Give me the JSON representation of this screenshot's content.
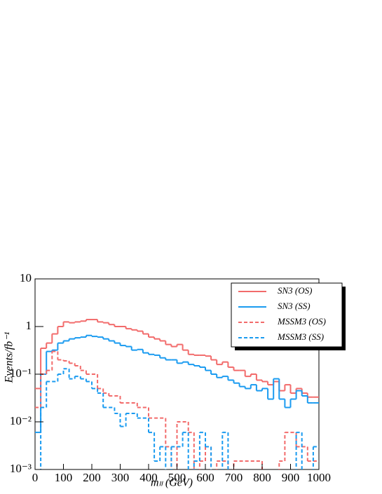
{
  "chart_data": {
    "type": "histogram",
    "x_label": "mₗₗ (GeV)",
    "y_label": "Events/fb⁻¹",
    "bins": [
      0,
      20,
      40,
      60,
      80,
      100,
      120,
      140,
      160,
      180,
      200,
      220,
      240,
      260,
      280,
      300,
      320,
      340,
      360,
      380,
      400,
      420,
      440,
      460,
      480,
      500,
      520,
      540,
      560,
      580,
      600,
      620,
      640,
      660,
      680,
      700,
      720,
      740,
      760,
      780,
      800,
      820,
      840,
      860,
      880,
      900,
      920,
      940,
      960,
      980,
      1000
    ],
    "xlim": [
      0,
      1000
    ],
    "xticks": [
      0,
      100,
      200,
      300,
      400,
      500,
      600,
      700,
      800,
      900,
      1000
    ],
    "ylim": [
      0.001,
      10
    ],
    "log_y": true,
    "yticks": [
      {
        "value": 0.001,
        "label": "10⁻³"
      },
      {
        "value": 0.01,
        "label": "10⁻²"
      },
      {
        "value": 0.1,
        "label": "10⁻¹"
      },
      1,
      10
    ],
    "legend": "upper right",
    "series": [
      {
        "name": "SN3 (OS)",
        "color": "#f26b6b",
        "dashed": false,
        "values": [
          0.05,
          0.35,
          0.45,
          0.7,
          1.0,
          1.25,
          1.2,
          1.25,
          1.3,
          1.4,
          1.4,
          1.25,
          1.2,
          1.1,
          1.0,
          1.0,
          0.9,
          0.85,
          0.8,
          0.7,
          0.6,
          0.55,
          0.5,
          0.42,
          0.38,
          0.42,
          0.32,
          0.26,
          0.25,
          0.25,
          0.24,
          0.2,
          0.16,
          0.18,
          0.14,
          0.12,
          0.12,
          0.09,
          0.1,
          0.075,
          0.07,
          0.06,
          0.07,
          0.045,
          0.06,
          0.04,
          0.05,
          0.04,
          0.033,
          0.033
        ]
      },
      {
        "name": "SN3 (SS)",
        "color": "#1a9bf0",
        "dashed": false,
        "values": [
          0.006,
          0.1,
          0.3,
          0.32,
          0.45,
          0.5,
          0.55,
          0.58,
          0.6,
          0.65,
          0.62,
          0.6,
          0.55,
          0.5,
          0.45,
          0.4,
          0.38,
          0.32,
          0.33,
          0.28,
          0.26,
          0.25,
          0.22,
          0.2,
          0.2,
          0.17,
          0.18,
          0.16,
          0.15,
          0.14,
          0.12,
          0.1,
          0.085,
          0.09,
          0.075,
          0.065,
          0.055,
          0.05,
          0.06,
          0.045,
          0.05,
          0.03,
          0.08,
          0.03,
          0.02,
          0.03,
          0.045,
          0.035,
          0.025,
          0.025
        ]
      },
      {
        "name": "MSSM3 (OS)",
        "color": "#f26b6b",
        "dashed": true,
        "values": [
          0.02,
          0.1,
          0.12,
          0.3,
          0.2,
          0.19,
          0.17,
          0.15,
          0.12,
          0.1,
          0.1,
          0.05,
          0.04,
          0.035,
          0.035,
          0.025,
          0.025,
          0.025,
          0.02,
          0.02,
          0.012,
          0.012,
          0.012,
          0.003,
          0,
          0.01,
          0.01,
          0.006,
          0,
          0.0015,
          0.003,
          0,
          0.0015,
          0.0015,
          0,
          0.0015,
          0.0015,
          0.0015,
          0.0015,
          0.0015,
          0,
          0,
          0,
          0.0015,
          0.006,
          0.006,
          0.003,
          0.003,
          0.0015,
          0.0015
        ]
      },
      {
        "name": "MSSM3 (SS)",
        "color": "#1a9bf0",
        "dashed": true,
        "values": [
          0,
          0.02,
          0.07,
          0.07,
          0.1,
          0.13,
          0.08,
          0.09,
          0.08,
          0.07,
          0.05,
          0.04,
          0.02,
          0.02,
          0.015,
          0.008,
          0.015,
          0.015,
          0.012,
          0.012,
          0.006,
          0.0015,
          0.003,
          0,
          0.003,
          0.003,
          0.006,
          0,
          0.0015,
          0.006,
          0.003,
          0,
          0,
          0.006,
          0,
          0,
          0,
          0,
          0,
          0,
          0,
          0,
          0,
          0,
          0,
          0,
          0.006,
          0,
          0,
          0.003
        ]
      }
    ]
  }
}
